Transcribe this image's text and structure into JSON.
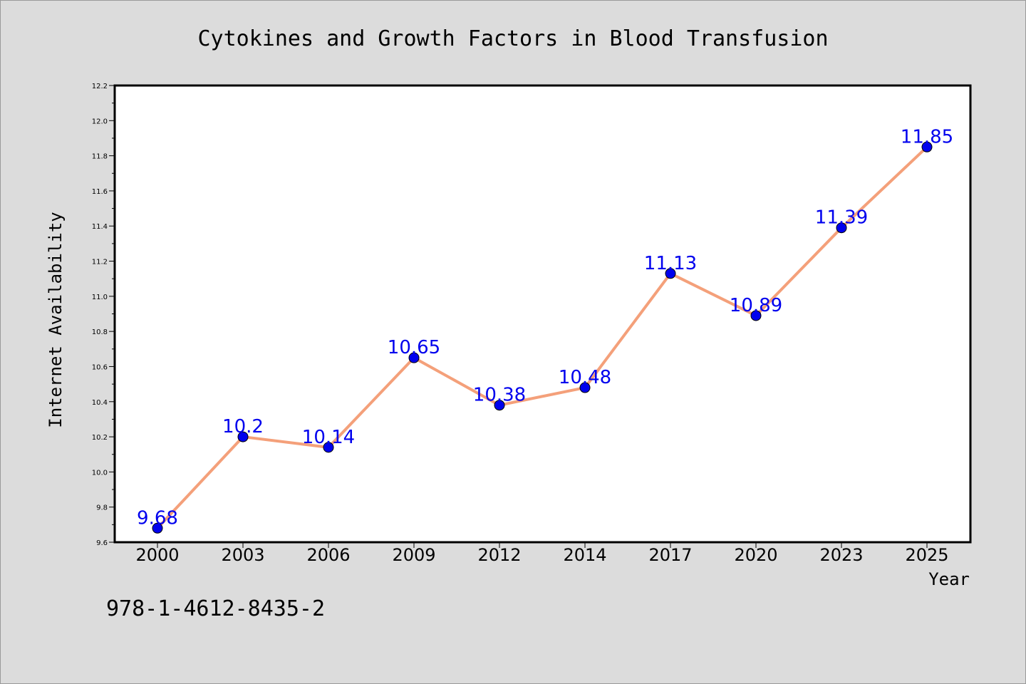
{
  "chart_data": {
    "type": "line",
    "title": "Cytokines and Growth Factors in Blood Transfusion",
    "xlabel": "Year",
    "ylabel": "Internet Availability",
    "categories": [
      "2000",
      "2003",
      "2006",
      "2009",
      "2012",
      "2014",
      "2017",
      "2020",
      "2023",
      "2025"
    ],
    "series": [
      {
        "values": [
          9.68,
          10.2,
          10.14,
          10.65,
          10.38,
          10.48,
          11.13,
          10.89,
          11.39,
          11.85
        ]
      }
    ],
    "data_labels": [
      "9.68",
      "10.2",
      "10.14",
      "10.65",
      "10.38",
      "10.48",
      "11.13",
      "10.89",
      "11.39",
      "11.85"
    ],
    "ylim": [
      9.6,
      12.2
    ],
    "yticks": [
      "9.6",
      "9.8",
      "10.0",
      "10.2",
      "10.4",
      "10.6",
      "10.8",
      "11.0",
      "11.2",
      "11.4",
      "11.6",
      "11.8",
      "12.0",
      "12.2"
    ],
    "grid": false,
    "legend": "none",
    "colors": {
      "line": "#f4a07a",
      "marker": "#0000ee",
      "label": "#0000ee",
      "plot_background": "#ffffff",
      "figure_background": "#dcdcdc"
    }
  },
  "annotation": {
    "isbn": "978-1-4612-8435-2"
  }
}
